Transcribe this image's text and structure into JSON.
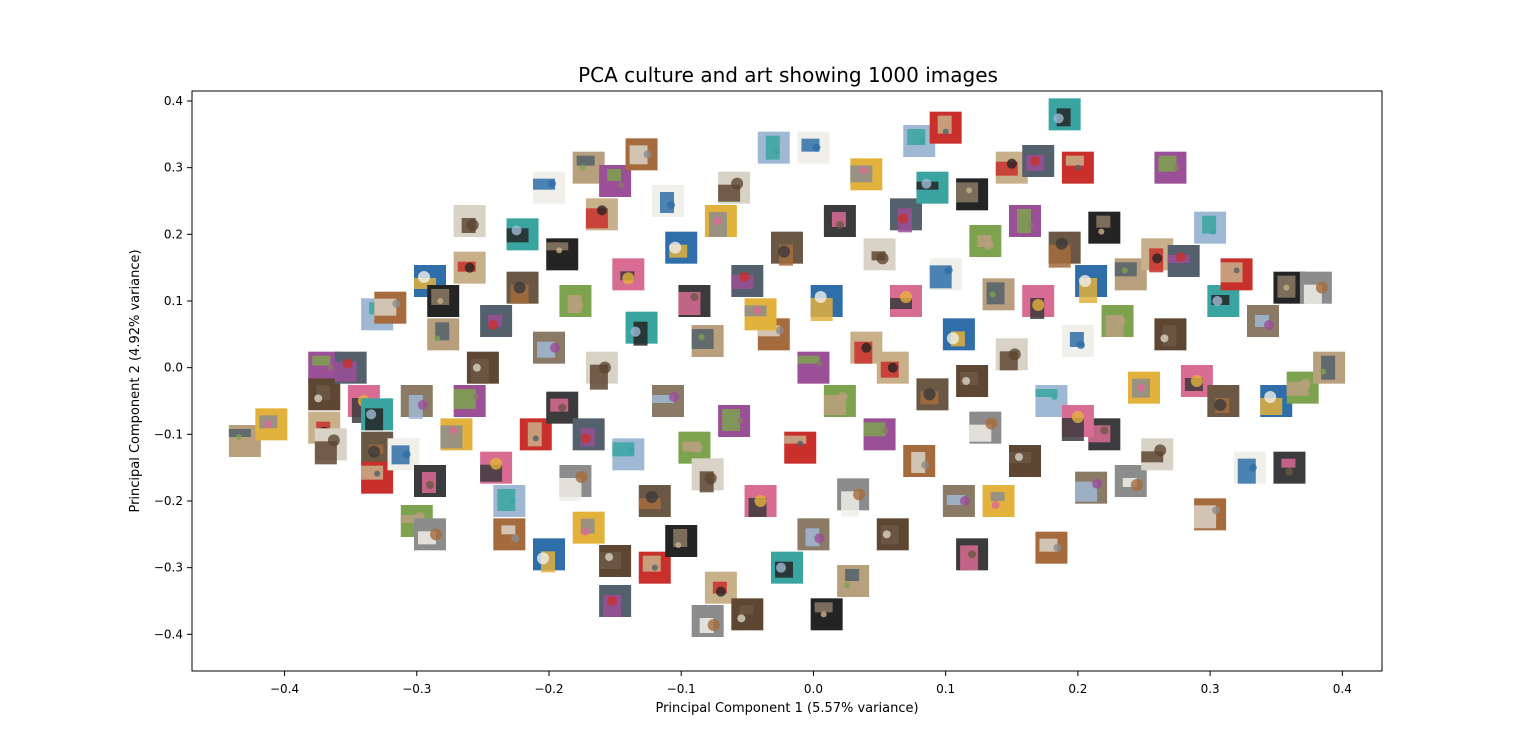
{
  "chart_data": {
    "type": "scatter",
    "title": "PCA culture and art showing 1000 images",
    "xlabel": "Principal Component 1 (5.57% variance)",
    "ylabel": "Principal Component 2 (4.92% variance)",
    "xlim": [
      -0.47,
      0.43
    ],
    "ylim": [
      -0.455,
      0.415
    ],
    "grid": false,
    "legend": "none",
    "marker": "image-thumbnail",
    "xticks": [
      -0.4,
      -0.3,
      -0.2,
      -0.1,
      0.0,
      0.1,
      0.2,
      0.3,
      0.4
    ],
    "xtick_labels": [
      "−0.4",
      "−0.3",
      "−0.2",
      "−0.1",
      "0.0",
      "0.1",
      "0.2",
      "0.3",
      "0.4"
    ],
    "yticks": [
      0.4,
      0.3,
      0.2,
      0.1,
      0.0,
      -0.1,
      -0.2,
      -0.3,
      -0.4
    ],
    "ytick_labels": [
      "0.4",
      "0.3",
      "0.2",
      "0.1",
      "0.0",
      "−0.1",
      "−0.2",
      "−0.3",
      "−0.4"
    ],
    "points": [
      {
        "x": -0.43,
        "y": -0.11
      },
      {
        "x": -0.41,
        "y": -0.085
      },
      {
        "x": -0.37,
        "y": -0.09
      },
      {
        "x": -0.365,
        "y": -0.115
      },
      {
        "x": -0.37,
        "y": 0.0
      },
      {
        "x": -0.37,
        "y": -0.04
      },
      {
        "x": -0.35,
        "y": 0.0
      },
      {
        "x": -0.34,
        "y": -0.05
      },
      {
        "x": -0.33,
        "y": 0.08
      },
      {
        "x": -0.32,
        "y": 0.09
      },
      {
        "x": -0.33,
        "y": -0.07
      },
      {
        "x": -0.33,
        "y": -0.12
      },
      {
        "x": -0.33,
        "y": -0.165
      },
      {
        "x": -0.31,
        "y": -0.13
      },
      {
        "x": -0.3,
        "y": -0.05
      },
      {
        "x": -0.29,
        "y": 0.13
      },
      {
        "x": -0.28,
        "y": 0.1
      },
      {
        "x": -0.29,
        "y": -0.17
      },
      {
        "x": -0.3,
        "y": -0.23
      },
      {
        "x": -0.29,
        "y": -0.25
      },
      {
        "x": -0.28,
        "y": 0.05
      },
      {
        "x": -0.27,
        "y": -0.1
      },
      {
        "x": -0.26,
        "y": 0.15
      },
      {
        "x": -0.26,
        "y": 0.22
      },
      {
        "x": -0.26,
        "y": -0.05
      },
      {
        "x": -0.25,
        "y": 0.0
      },
      {
        "x": -0.24,
        "y": 0.07
      },
      {
        "x": -0.24,
        "y": -0.15
      },
      {
        "x": -0.23,
        "y": -0.2
      },
      {
        "x": -0.23,
        "y": -0.25
      },
      {
        "x": -0.22,
        "y": 0.2
      },
      {
        "x": -0.22,
        "y": 0.12
      },
      {
        "x": -0.21,
        "y": -0.1
      },
      {
        "x": -0.2,
        "y": 0.27
      },
      {
        "x": -0.2,
        "y": 0.03
      },
      {
        "x": -0.2,
        "y": -0.28
      },
      {
        "x": -0.19,
        "y": 0.17
      },
      {
        "x": -0.19,
        "y": -0.06
      },
      {
        "x": -0.18,
        "y": 0.1
      },
      {
        "x": -0.18,
        "y": -0.17
      },
      {
        "x": -0.17,
        "y": 0.3
      },
      {
        "x": -0.17,
        "y": -0.24
      },
      {
        "x": -0.16,
        "y": 0.23
      },
      {
        "x": -0.16,
        "y": 0.0
      },
      {
        "x": -0.15,
        "y": 0.28
      },
      {
        "x": -0.15,
        "y": -0.29
      },
      {
        "x": -0.15,
        "y": -0.35
      },
      {
        "x": -0.14,
        "y": 0.14
      },
      {
        "x": -0.14,
        "y": -0.13
      },
      {
        "x": -0.13,
        "y": 0.32
      },
      {
        "x": -0.13,
        "y": 0.06
      },
      {
        "x": -0.12,
        "y": -0.2
      },
      {
        "x": -0.12,
        "y": -0.3
      },
      {
        "x": -0.11,
        "y": 0.25
      },
      {
        "x": -0.11,
        "y": -0.05
      },
      {
        "x": -0.1,
        "y": 0.18
      },
      {
        "x": -0.1,
        "y": -0.26
      },
      {
        "x": -0.09,
        "y": 0.1
      },
      {
        "x": -0.09,
        "y": -0.12
      },
      {
        "x": -0.08,
        "y": -0.38
      },
      {
        "x": -0.08,
        "y": 0.04
      },
      {
        "x": -0.07,
        "y": 0.22
      },
      {
        "x": -0.07,
        "y": -0.33
      },
      {
        "x": -0.06,
        "y": 0.27
      },
      {
        "x": -0.06,
        "y": -0.08
      },
      {
        "x": -0.05,
        "y": -0.37
      },
      {
        "x": -0.05,
        "y": 0.13
      },
      {
        "x": -0.04,
        "y": -0.2
      },
      {
        "x": -0.03,
        "y": 0.33
      },
      {
        "x": -0.03,
        "y": 0.05
      },
      {
        "x": -0.02,
        "y": -0.3
      },
      {
        "x": -0.02,
        "y": 0.18
      },
      {
        "x": -0.01,
        "y": -0.12
      },
      {
        "x": 0.0,
        "y": 0.33
      },
      {
        "x": 0.0,
        "y": -0.25
      },
      {
        "x": 0.01,
        "y": 0.1
      },
      {
        "x": 0.01,
        "y": -0.37
      },
      {
        "x": 0.02,
        "y": 0.22
      },
      {
        "x": 0.02,
        "y": -0.05
      },
      {
        "x": 0.03,
        "y": -0.19
      },
      {
        "x": 0.03,
        "y": -0.32
      },
      {
        "x": 0.04,
        "y": 0.29
      },
      {
        "x": 0.04,
        "y": 0.03
      },
      {
        "x": 0.05,
        "y": 0.17
      },
      {
        "x": 0.05,
        "y": -0.1
      },
      {
        "x": 0.06,
        "y": -0.25
      },
      {
        "x": 0.07,
        "y": 0.23
      },
      {
        "x": 0.07,
        "y": 0.1
      },
      {
        "x": 0.08,
        "y": 0.34
      },
      {
        "x": 0.08,
        "y": -0.14
      },
      {
        "x": 0.09,
        "y": 0.27
      },
      {
        "x": 0.09,
        "y": -0.04
      },
      {
        "x": 0.1,
        "y": 0.36
      },
      {
        "x": 0.1,
        "y": 0.14
      },
      {
        "x": 0.11,
        "y": -0.2
      },
      {
        "x": 0.11,
        "y": 0.05
      },
      {
        "x": 0.12,
        "y": 0.26
      },
      {
        "x": 0.12,
        "y": -0.28
      },
      {
        "x": 0.13,
        "y": 0.19
      },
      {
        "x": 0.13,
        "y": -0.09
      },
      {
        "x": 0.14,
        "y": 0.11
      },
      {
        "x": 0.14,
        "y": -0.2
      },
      {
        "x": 0.15,
        "y": 0.3
      },
      {
        "x": 0.15,
        "y": 0.02
      },
      {
        "x": 0.16,
        "y": 0.22
      },
      {
        "x": 0.16,
        "y": -0.14
      },
      {
        "x": 0.17,
        "y": 0.31
      },
      {
        "x": 0.17,
        "y": 0.1
      },
      {
        "x": 0.18,
        "y": -0.05
      },
      {
        "x": 0.18,
        "y": -0.27
      },
      {
        "x": 0.19,
        "y": 0.38
      },
      {
        "x": 0.19,
        "y": 0.18
      },
      {
        "x": 0.2,
        "y": 0.3
      },
      {
        "x": 0.2,
        "y": 0.04
      },
      {
        "x": 0.21,
        "y": -0.18
      },
      {
        "x": 0.21,
        "y": 0.13
      },
      {
        "x": 0.22,
        "y": 0.21
      },
      {
        "x": 0.22,
        "y": -0.1
      },
      {
        "x": 0.23,
        "y": 0.07
      },
      {
        "x": 0.24,
        "y": -0.17
      },
      {
        "x": 0.24,
        "y": 0.14
      },
      {
        "x": 0.25,
        "y": -0.03
      },
      {
        "x": 0.26,
        "y": 0.17
      },
      {
        "x": 0.26,
        "y": -0.13
      },
      {
        "x": 0.27,
        "y": 0.3
      },
      {
        "x": 0.27,
        "y": 0.05
      },
      {
        "x": 0.28,
        "y": 0.16
      },
      {
        "x": 0.29,
        "y": -0.02
      },
      {
        "x": 0.3,
        "y": 0.21
      },
      {
        "x": 0.3,
        "y": -0.22
      },
      {
        "x": 0.31,
        "y": 0.1
      },
      {
        "x": 0.31,
        "y": -0.05
      },
      {
        "x": 0.32,
        "y": 0.14
      },
      {
        "x": 0.33,
        "y": -0.15
      },
      {
        "x": 0.34,
        "y": 0.07
      },
      {
        "x": 0.35,
        "y": -0.05
      },
      {
        "x": 0.36,
        "y": 0.12
      },
      {
        "x": 0.36,
        "y": -0.15
      },
      {
        "x": 0.37,
        "y": -0.03
      },
      {
        "x": 0.38,
        "y": 0.12
      },
      {
        "x": 0.39,
        "y": 0.0
      },
      {
        "x": -0.04,
        "y": 0.08
      },
      {
        "x": 0.06,
        "y": 0.0
      },
      {
        "x": -0.08,
        "y": -0.16
      },
      {
        "x": 0.0,
        "y": 0.0
      },
      {
        "x": 0.12,
        "y": -0.02
      },
      {
        "x": -0.17,
        "y": -0.1
      },
      {
        "x": 0.2,
        "y": -0.08
      }
    ]
  }
}
